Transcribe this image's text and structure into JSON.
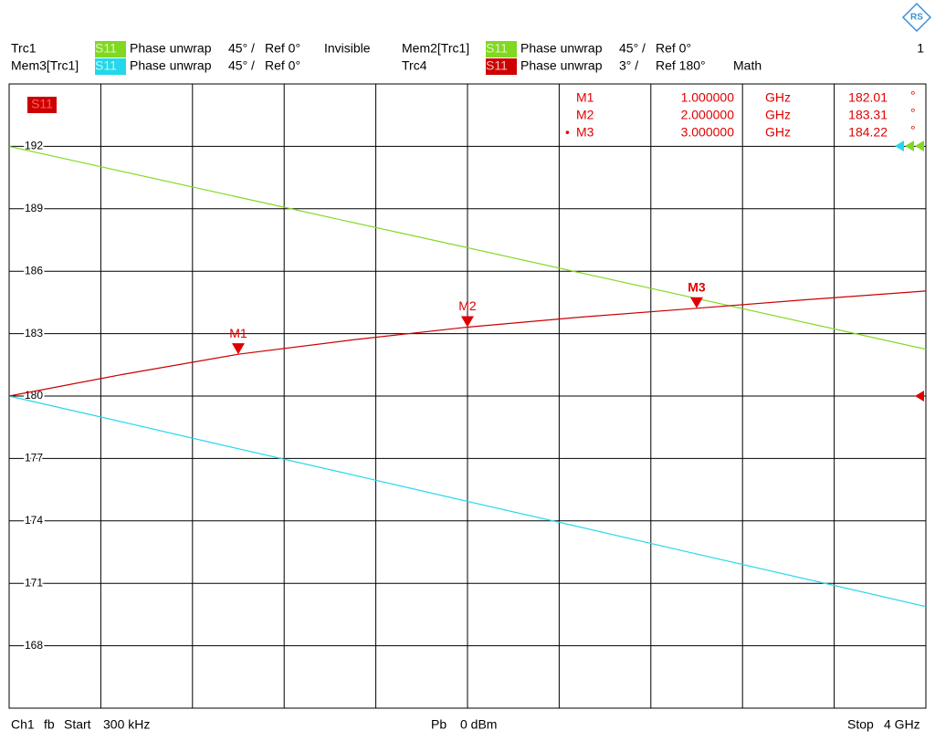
{
  "header": {
    "window_number": "1"
  },
  "chart_data": {
    "type": "line",
    "active_trace": "S11",
    "x": [
      0.0003,
      0.5,
      1,
      1.5,
      2,
      2.5,
      3,
      3.5,
      4
    ],
    "xlim": [
      0.0003,
      4
    ],
    "ylim": [
      165,
      195
    ],
    "yticks": [
      168,
      171,
      174,
      177,
      180,
      183,
      186,
      189,
      192
    ],
    "grid": true,
    "series": [
      {
        "name": "Trc1",
        "param": "S11",
        "format": "Phase unwrap",
        "scale": "45° /",
        "ref": "Ref 0°",
        "state": "Invisible",
        "color": "#80d820"
      },
      {
        "name": "Mem2[Trc1]",
        "param": "S11",
        "format": "Phase unwrap",
        "scale": "45° /",
        "ref": "Ref 0°",
        "color": "#80d820",
        "values": [
          192,
          190.78,
          189.56,
          188.34,
          187.13,
          185.91,
          184.69,
          183.47,
          182.25
        ]
      },
      {
        "name": "Mem3[Trc1]",
        "param": "S11",
        "format": "Phase unwrap",
        "scale": "45° /",
        "ref": "Ref 0°",
        "color": "#22d8ea",
        "values": [
          180,
          178.74,
          177.47,
          176.21,
          174.94,
          173.68,
          172.41,
          171.15,
          169.88
        ]
      },
      {
        "name": "Trc4",
        "param": "S11",
        "format": "Phase unwrap",
        "scale": "3° /",
        "ref": "Ref 180°",
        "state": "Math",
        "color": "#cc0000",
        "values": [
          180,
          181.05,
          182.01,
          182.7,
          183.31,
          183.8,
          184.22,
          184.65,
          185.05
        ]
      }
    ],
    "markers": [
      {
        "name": "M1",
        "x": 1,
        "x_label": "1.000000",
        "unit": "GHz",
        "value": 182.01,
        "value_unit": "°"
      },
      {
        "name": "M2",
        "x": 2,
        "x_label": "2.000000",
        "unit": "GHz",
        "value": 183.31,
        "value_unit": "°"
      },
      {
        "name": "M3",
        "bullet": "•",
        "x": 3,
        "x_label": "3.000000",
        "unit": "GHz",
        "value": 184.22,
        "value_unit": "°"
      }
    ]
  },
  "footer": {
    "channel": "Ch1",
    "sweep": "fb",
    "start_label": "Start",
    "start": "300 kHz",
    "power_label": "Pb",
    "power": "0 dBm",
    "stop_label": "Stop",
    "stop": "4 GHz"
  }
}
